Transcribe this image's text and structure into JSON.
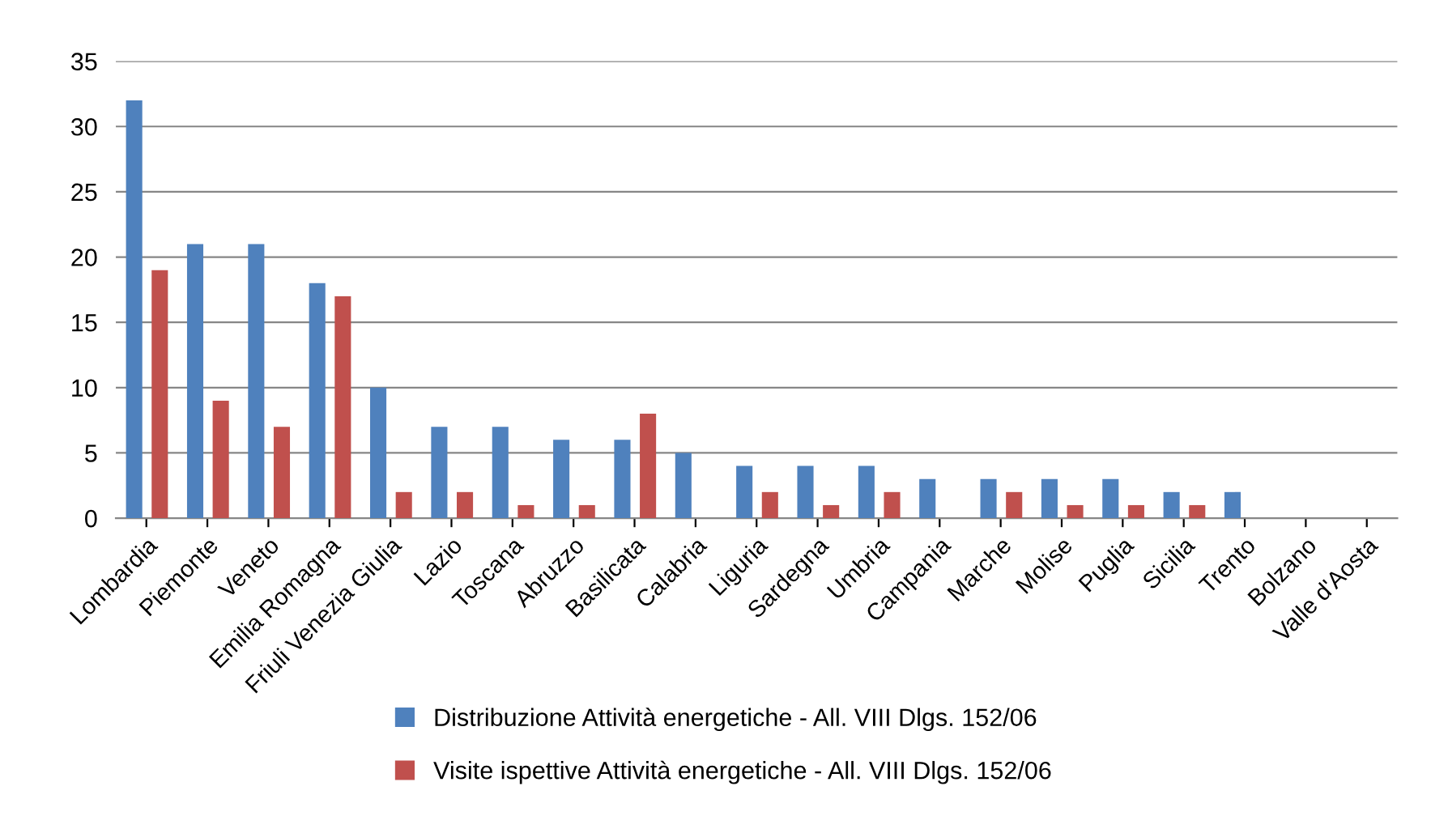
{
  "chart_data": {
    "type": "bar",
    "categories": [
      "Lombardia",
      "Piemonte",
      "Veneto",
      "Emilia Romagna",
      "Friuli Venezia Giulia",
      "Lazio",
      "Toscana",
      "Abruzzo",
      "Basilicata",
      "Calabria",
      "Liguria",
      "Sardegna",
      "Umbria",
      "Campania",
      "Marche",
      "Molise",
      "Puglia",
      "Sicilia",
      "Trento",
      "Bolzano",
      "Valle d'Aosta"
    ],
    "series": [
      {
        "name": "Distribuzione Attività energetiche - All. VIII Dlgs. 152/06",
        "color": "#4f81bd",
        "values": [
          32,
          21,
          21,
          18,
          10,
          7,
          7,
          6,
          6,
          5,
          4,
          4,
          4,
          3,
          3,
          3,
          3,
          2,
          2,
          0,
          0
        ]
      },
      {
        "name": "Visite ispettive Attività energetiche - All. VIII Dlgs. 152/06",
        "color": "#c0504d",
        "values": [
          19,
          9,
          7,
          17,
          2,
          2,
          1,
          1,
          8,
          0,
          2,
          1,
          2,
          0,
          2,
          1,
          1,
          1,
          0,
          0,
          0
        ]
      }
    ],
    "ylim": [
      0,
      35
    ],
    "yticks": [
      0,
      5,
      10,
      15,
      20,
      25,
      30,
      35
    ],
    "grid": "y",
    "legend": "bottom"
  }
}
